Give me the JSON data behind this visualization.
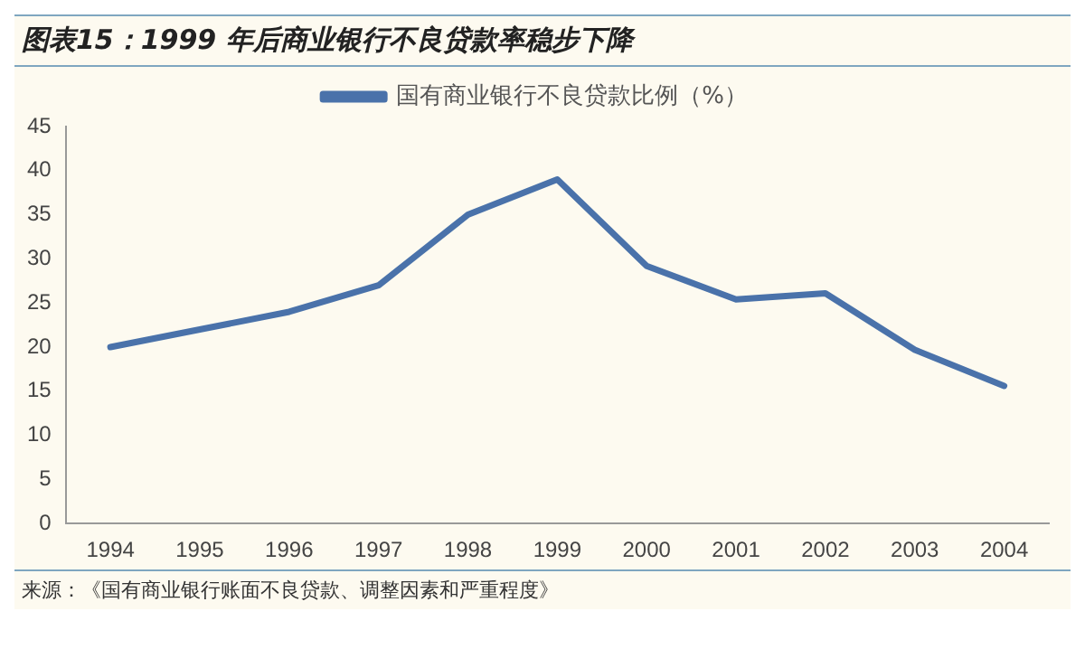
{
  "chart_data": {
    "type": "line",
    "title": "图表15：1999 年后商业银行不良贷款率稳步下降",
    "categories": [
      "1994",
      "1995",
      "1996",
      "1997",
      "1998",
      "1999",
      "2000",
      "2001",
      "2002",
      "2003",
      "2004"
    ],
    "series": [
      {
        "name": "国有商业银行不良贷款比例（%）",
        "color": "#4a72aa",
        "values": [
          20,
          22,
          24,
          27,
          35,
          39,
          29.2,
          25.4,
          26.1,
          19.7,
          15.6
        ]
      }
    ],
    "ylim": [
      0,
      45
    ],
    "yticks": [
      0,
      5,
      10,
      15,
      20,
      25,
      30,
      35,
      40,
      45
    ],
    "grid": false,
    "legend": "top",
    "marker": "none",
    "line_style": "solid",
    "annotations": [
      "来源：《国有商业银行账面不良贷款、调整因素和严重程度》"
    ]
  }
}
